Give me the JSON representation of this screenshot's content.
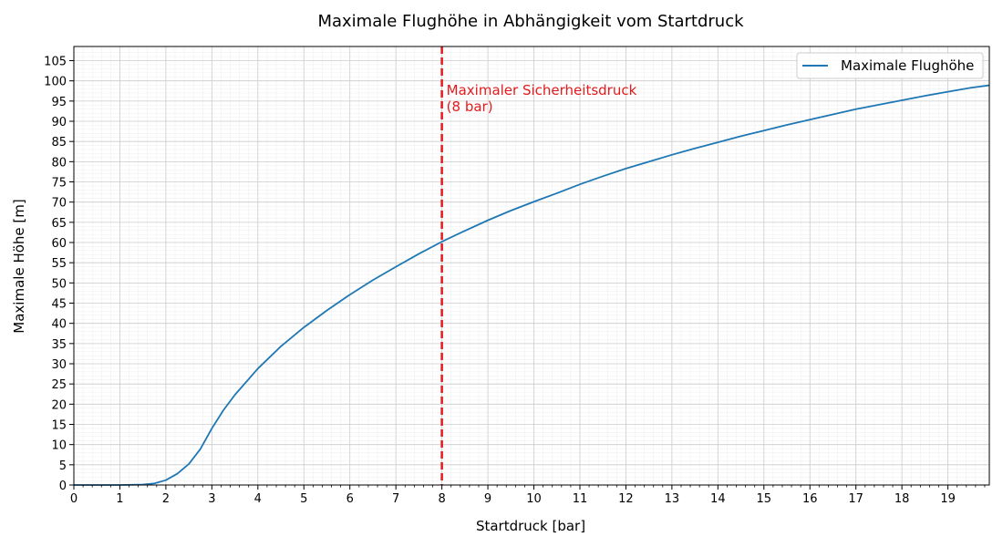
{
  "chart_data": {
    "type": "line",
    "title": "Maximale Flughöhe in Abhängigkeit vom Startdruck",
    "xlabel": "Startdruck [bar]",
    "ylabel": "Maximale Höhe [m]",
    "xlim": [
      0,
      19.9
    ],
    "ylim": [
      0,
      108.5
    ],
    "xticks": [
      0,
      1,
      2,
      3,
      4,
      5,
      6,
      7,
      8,
      9,
      10,
      11,
      12,
      13,
      14,
      15,
      16,
      17,
      18,
      19
    ],
    "yticks": [
      0,
      5,
      10,
      15,
      20,
      25,
      30,
      35,
      40,
      45,
      50,
      55,
      60,
      65,
      70,
      75,
      80,
      85,
      90,
      95,
      100,
      105
    ],
    "grid": true,
    "legend": {
      "position": "top-right",
      "entries": [
        "Maximale Flughöhe"
      ]
    },
    "series": [
      {
        "name": "Maximale Flughöhe",
        "color": "#1f77b4",
        "x": [
          0,
          0.5,
          1.0,
          1.5,
          1.75,
          2.0,
          2.25,
          2.5,
          2.75,
          3.0,
          3.25,
          3.5,
          4.0,
          4.5,
          5.0,
          5.5,
          6.0,
          6.5,
          7.0,
          7.5,
          8.0,
          8.5,
          9.0,
          9.5,
          10.0,
          10.5,
          11.0,
          11.5,
          12.0,
          12.5,
          13.0,
          13.5,
          14.0,
          14.5,
          15.0,
          15.5,
          16.0,
          16.5,
          17.0,
          17.5,
          18.0,
          18.5,
          19.0,
          19.5,
          19.9
        ],
        "y": [
          0,
          0,
          0,
          0.1,
          0.4,
          1.2,
          2.8,
          5.2,
          8.9,
          14.0,
          18.5,
          22.3,
          28.8,
          34.3,
          39.0,
          43.2,
          47.1,
          50.7,
          54.0,
          57.2,
          60.2,
          62.9,
          65.5,
          67.9,
          70.1,
          72.2,
          74.4,
          76.4,
          78.3,
          80.0,
          81.7,
          83.3,
          84.8,
          86.3,
          87.7,
          89.1,
          90.4,
          91.7,
          93.0,
          94.1,
          95.2,
          96.3,
          97.3,
          98.3,
          98.9
        ]
      }
    ],
    "annotations": [
      {
        "type": "vline",
        "x": 8,
        "color": "#e41a1c",
        "style": "dashed"
      },
      {
        "type": "text",
        "x": 8.1,
        "y": 96.5,
        "lines": [
          "Maximaler Sicherheitsdruck",
          "(8 bar)"
        ],
        "color": "#e41a1c"
      }
    ]
  }
}
